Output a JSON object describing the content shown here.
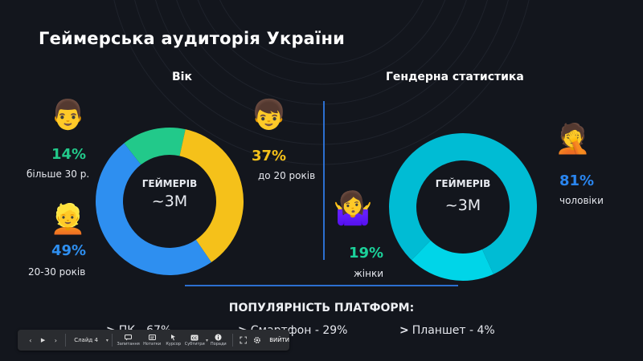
{
  "title": "Геймерська аудиторія України",
  "age_section": {
    "heading": "Вік",
    "center_label": "ГЕЙМЕРІВ",
    "center_value": "~3M",
    "groups": [
      {
        "percent": "14%",
        "caption": "більше 30 р.",
        "color": "#22c98a",
        "emoji": "👨"
      },
      {
        "percent": "37%",
        "caption": "до 20 років",
        "color": "#f5c11a",
        "emoji": "👦"
      },
      {
        "percent": "49%",
        "caption": "20-30 років",
        "color": "#2e8ff0",
        "emoji": "👱"
      }
    ]
  },
  "gender_section": {
    "heading": "Гендерна статистика",
    "center_label": "ГЕЙМЕРІВ",
    "center_value": "~3M",
    "groups": [
      {
        "percent": "81%",
        "caption": "чоловіки",
        "color": "#2a86f0",
        "emoji": "🤦"
      },
      {
        "percent": "19%",
        "caption": "жінки",
        "color": "#1bd19a",
        "emoji": "🤷‍♀️"
      }
    ]
  },
  "chart_data": [
    {
      "type": "pie",
      "title": "Вік",
      "categories": [
        "більше 30 р.",
        "до 20 років",
        "20-30 років"
      ],
      "values": [
        14,
        37,
        49
      ],
      "colors": [
        "#22c98a",
        "#f5c11a",
        "#2e8ff0"
      ],
      "center_text": [
        "ГЕЙМЕРІВ",
        "~3M"
      ]
    },
    {
      "type": "pie",
      "title": "Гендерна статистика",
      "categories": [
        "чоловіки",
        "жінки"
      ],
      "values": [
        81,
        19
      ],
      "colors": [
        "#00bcd4",
        "#00d5e8"
      ],
      "center_text": [
        "ГЕЙМЕРІВ",
        "~3M"
      ]
    }
  ],
  "platforms": {
    "heading": "ПОПУЛЯРНІСТЬ ПЛАТФОРМ:",
    "items": [
      {
        "arrow": ">",
        "text": "ПК - 67%"
      },
      {
        "arrow": ">",
        "text": "Смартфон - 29%"
      },
      {
        "arrow": ">",
        "text": "Планшет - 4%"
      }
    ]
  },
  "toolbar": {
    "prev_icon": "‹",
    "play_icon": "▶",
    "next_icon": "›",
    "slide_label": "Слайд 4",
    "slide_caret": "▾",
    "buttons": [
      {
        "icon": "chat-icon",
        "label": "Запитання"
      },
      {
        "icon": "notes-icon",
        "label": "Нотатки"
      },
      {
        "icon": "cursor-icon",
        "label": "Курсор"
      },
      {
        "icon": "cc-icon",
        "label": "Субтитри"
      },
      {
        "icon": "info-icon",
        "label": "Поради"
      }
    ],
    "exit_label": "ВИЙТИ"
  }
}
